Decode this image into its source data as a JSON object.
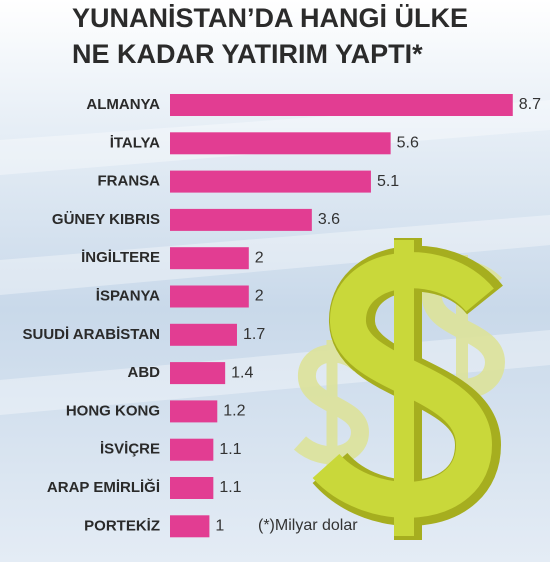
{
  "chart_data": {
    "type": "bar",
    "orientation": "horizontal",
    "title": [
      "YUNANİSTAN’DA HANGİ ÜLKE",
      "NE KADAR YATIRIM YAPTI*"
    ],
    "note": "(*)Milyar dolar",
    "categories": [
      "ALMANYA",
      "İTALYA",
      "FRANSA",
      "GÜNEY KIBRIS",
      "İNGİLTERE",
      "İSPANYA",
      "SUUDİ ARABİSTAN",
      "ABD",
      "HONG KONG",
      "İSVİÇRE",
      "ARAP EMİRLİĞİ",
      "PORTEKİZ"
    ],
    "values": [
      8.7,
      5.6,
      5.1,
      3.6,
      2,
      2,
      1.7,
      1.4,
      1.2,
      1.1,
      1.1,
      1
    ],
    "color": "#e23d92"
  }
}
